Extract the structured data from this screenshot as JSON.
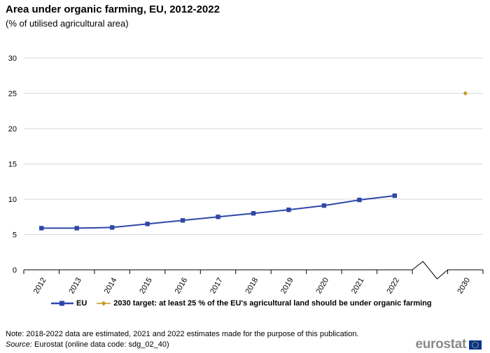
{
  "title": "Area under organic farming, EU, 2012-2022",
  "subtitle": "(% of utilised agricultural area)",
  "note": "Note: 2018-2022 data are estimated, 2021 and 2022 estimates made for the purpose of this publication.",
  "source": {
    "label": "Source:",
    "text": "Eurostat (online data code: sdg_02_40)"
  },
  "logo": {
    "text": "eurostat",
    "icon": "eu-flag-icon"
  },
  "colors": {
    "eu": "#2e47a8",
    "target": "#c39a1e",
    "grid": "#d9d9d9",
    "axis": "#000000"
  },
  "chart_data": {
    "type": "line",
    "title": "Area under organic farming, EU, 2012-2022",
    "subtitle": "(% of utilised agricultural area)",
    "categories": [
      "2012",
      "2013",
      "2014",
      "2015",
      "2016",
      "2017",
      "2018",
      "2019",
      "2020",
      "2021",
      "2022",
      "",
      "2030"
    ],
    "axis_break_after": "2022",
    "ylim": [
      0,
      30
    ],
    "yticks": [
      0,
      5,
      10,
      15,
      20,
      25,
      30
    ],
    "grid": true,
    "legend_position": "bottom",
    "series": [
      {
        "name": "EU",
        "marker": "square",
        "color": "#2e47a8",
        "x": [
          "2012",
          "2013",
          "2014",
          "2015",
          "2016",
          "2017",
          "2018",
          "2019",
          "2020",
          "2021",
          "2022"
        ],
        "values": [
          5.9,
          5.9,
          6.0,
          6.5,
          7.0,
          7.5,
          8.0,
          8.5,
          9.1,
          9.9,
          10.5
        ]
      },
      {
        "name": "2030 target: at least 25 % of the EU's agricultural land should be under organic farming",
        "marker": "diamond",
        "color": "#c39a1e",
        "x": [
          "2030"
        ],
        "values": [
          25
        ]
      }
    ]
  }
}
